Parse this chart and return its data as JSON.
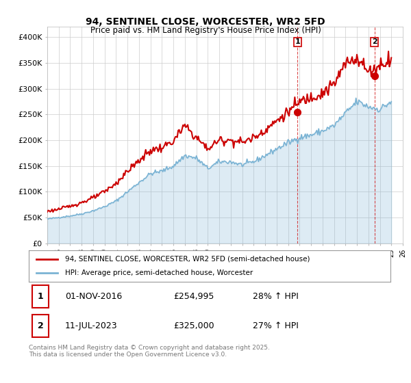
{
  "title": "94, SENTINEL CLOSE, WORCESTER, WR2 5FD",
  "subtitle": "Price paid vs. HM Land Registry's House Price Index (HPI)",
  "ylim": [
    0,
    420000
  ],
  "yticks": [
    0,
    50000,
    100000,
    150000,
    200000,
    250000,
    300000,
    350000,
    400000
  ],
  "ytick_labels": [
    "£0",
    "£50K",
    "£100K",
    "£150K",
    "£200K",
    "£250K",
    "£300K",
    "£350K",
    "£400K"
  ],
  "red_color": "#cc0000",
  "blue_color": "#7ab3d4",
  "fill_color": "#d6eaf8",
  "background_color": "#ffffff",
  "grid_color": "#cccccc",
  "marker1_year": 2016.83,
  "marker1_price": 254995,
  "marker1_label": "1",
  "marker2_year": 2023.53,
  "marker2_price": 325000,
  "marker2_label": "2",
  "legend_entry1": "94, SENTINEL CLOSE, WORCESTER, WR2 5FD (semi-detached house)",
  "legend_entry2": "HPI: Average price, semi-detached house, Worcester",
  "table_row1": [
    "1",
    "01-NOV-2016",
    "£254,995",
    "28% ↑ HPI"
  ],
  "table_row2": [
    "2",
    "11-JUL-2023",
    "£325,000",
    "27% ↑ HPI"
  ],
  "footer": "Contains HM Land Registry data © Crown copyright and database right 2025.\nThis data is licensed under the Open Government Licence v3.0.",
  "xlim_start": 1995.0,
  "xlim_end": 2026.0
}
